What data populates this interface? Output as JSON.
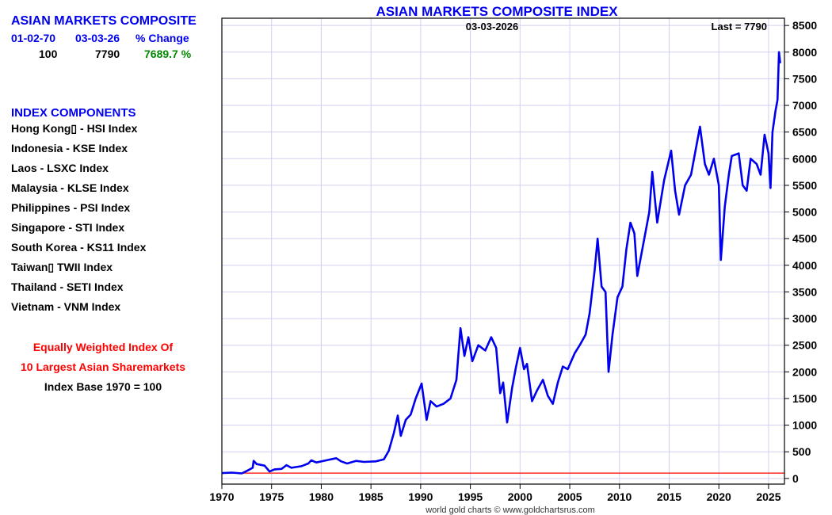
{
  "sidebar": {
    "title": "ASIAN MARKETS COMPOSITE",
    "col_headers": [
      "01-02-70",
      "03-03-26",
      "% Change"
    ],
    "values": [
      "100",
      "7790",
      "7689.7 %"
    ],
    "components_title": "INDEX COMPONENTS",
    "components": [
      "Hong Kong▯ - HSI Index",
      "Indonesia - KSE Index",
      "Laos - LSXC Index",
      "Malaysia - KLSE Index",
      "Philippines - PSI Index",
      "Singapore - STI Index",
      "South Korea - KS11 Index",
      "Taiwan▯ TWII Index",
      "Thailand - SETI Index",
      "Vietnam - VNM Index"
    ],
    "note1": "Equally Weighted Index Of",
    "note2": "10 Largest Asian Sharemarkets",
    "note3": "Index Base 1970 = 100"
  },
  "colors": {
    "title": "#0000ee",
    "line": "#0000ee",
    "base_line": "#ff0000",
    "grid": "#d0d0f0",
    "positive": "#008800",
    "note": "#ff0000"
  },
  "chart_data": {
    "type": "line",
    "title": "ASIAN MARKETS COMPOSITE INDEX",
    "date_label": "03-03-2026",
    "last_label": "Last = 7790",
    "credit": "world gold charts © www.goldchartsrus.com",
    "xlim": [
      1970,
      2026.6
    ],
    "ylim": [
      -106,
      8636
    ],
    "x_ticks": [
      1970,
      1975,
      1980,
      1985,
      1990,
      1995,
      2000,
      2005,
      2010,
      2015,
      2020,
      2025
    ],
    "y_ticks": [
      0,
      500,
      1000,
      1500,
      2000,
      2500,
      3000,
      3500,
      4000,
      4500,
      5000,
      5500,
      6000,
      6500,
      7000,
      7500,
      8000,
      8500
    ],
    "base_value": 100,
    "grid": true,
    "series": [
      {
        "name": "Asian Markets Composite",
        "points": [
          [
            1970,
            100
          ],
          [
            1971,
            110
          ],
          [
            1972,
            95
          ],
          [
            1972.6,
            150
          ],
          [
            1973.1,
            200
          ],
          [
            1973.2,
            330
          ],
          [
            1973.5,
            270
          ],
          [
            1974.3,
            240
          ],
          [
            1974.8,
            130
          ],
          [
            1975.3,
            170
          ],
          [
            1976,
            180
          ],
          [
            1976.5,
            250
          ],
          [
            1977,
            200
          ],
          [
            1978,
            230
          ],
          [
            1978.7,
            280
          ],
          [
            1979,
            340
          ],
          [
            1979.5,
            300
          ],
          [
            1980.5,
            340
          ],
          [
            1981.5,
            380
          ],
          [
            1982,
            320
          ],
          [
            1982.6,
            280
          ],
          [
            1983.5,
            330
          ],
          [
            1984.3,
            310
          ],
          [
            1985.5,
            320
          ],
          [
            1986.3,
            360
          ],
          [
            1986.8,
            520
          ],
          [
            1987.3,
            850
          ],
          [
            1987.7,
            1180
          ],
          [
            1988,
            800
          ],
          [
            1988.5,
            1100
          ],
          [
            1989,
            1200
          ],
          [
            1989.5,
            1500
          ],
          [
            1990.1,
            1780
          ],
          [
            1990.6,
            1100
          ],
          [
            1991,
            1450
          ],
          [
            1991.6,
            1350
          ],
          [
            1992.3,
            1400
          ],
          [
            1993,
            1500
          ],
          [
            1993.6,
            1850
          ],
          [
            1994,
            2820
          ],
          [
            1994.4,
            2300
          ],
          [
            1994.8,
            2650
          ],
          [
            1995.2,
            2200
          ],
          [
            1995.8,
            2500
          ],
          [
            1996.5,
            2400
          ],
          [
            1997.1,
            2650
          ],
          [
            1997.6,
            2450
          ],
          [
            1998,
            1600
          ],
          [
            1998.3,
            1800
          ],
          [
            1998.7,
            1050
          ],
          [
            1999.2,
            1700
          ],
          [
            1999.6,
            2100
          ],
          [
            2000,
            2450
          ],
          [
            2000.4,
            2050
          ],
          [
            2000.7,
            2150
          ],
          [
            2001.2,
            1450
          ],
          [
            2001.7,
            1650
          ],
          [
            2002.3,
            1850
          ],
          [
            2002.8,
            1550
          ],
          [
            2003.3,
            1400
          ],
          [
            2003.8,
            1800
          ],
          [
            2004.3,
            2100
          ],
          [
            2004.8,
            2050
          ],
          [
            2005.5,
            2350
          ],
          [
            2006,
            2500
          ],
          [
            2006.6,
            2700
          ],
          [
            2007,
            3100
          ],
          [
            2007.5,
            3900
          ],
          [
            2007.8,
            4500
          ],
          [
            2008.2,
            3600
          ],
          [
            2008.6,
            3500
          ],
          [
            2008.9,
            2000
          ],
          [
            2009.3,
            2700
          ],
          [
            2009.8,
            3400
          ],
          [
            2010.3,
            3600
          ],
          [
            2010.7,
            4300
          ],
          [
            2011.1,
            4800
          ],
          [
            2011.5,
            4600
          ],
          [
            2011.8,
            3800
          ],
          [
            2012.5,
            4500
          ],
          [
            2013,
            5000
          ],
          [
            2013.3,
            5750
          ],
          [
            2013.8,
            4800
          ],
          [
            2014.5,
            5600
          ],
          [
            2015.2,
            6150
          ],
          [
            2015.6,
            5400
          ],
          [
            2016,
            4950
          ],
          [
            2016.6,
            5500
          ],
          [
            2017.2,
            5700
          ],
          [
            2017.8,
            6300
          ],
          [
            2018.1,
            6600
          ],
          [
            2018.6,
            5900
          ],
          [
            2019,
            5700
          ],
          [
            2019.5,
            6000
          ],
          [
            2020,
            5500
          ],
          [
            2020.2,
            4100
          ],
          [
            2020.6,
            5100
          ],
          [
            2021,
            5700
          ],
          [
            2021.3,
            6050
          ],
          [
            2022,
            6100
          ],
          [
            2022.4,
            5500
          ],
          [
            2022.8,
            5400
          ],
          [
            2023.2,
            6000
          ],
          [
            2023.8,
            5900
          ],
          [
            2024.2,
            5700
          ],
          [
            2024.6,
            6450
          ],
          [
            2025.0,
            6100
          ],
          [
            2025.2,
            5450
          ],
          [
            2025.4,
            6500
          ],
          [
            2025.7,
            6900
          ],
          [
            2025.9,
            7100
          ],
          [
            2026.05,
            8000
          ],
          [
            2026.17,
            7790
          ]
        ]
      }
    ]
  }
}
